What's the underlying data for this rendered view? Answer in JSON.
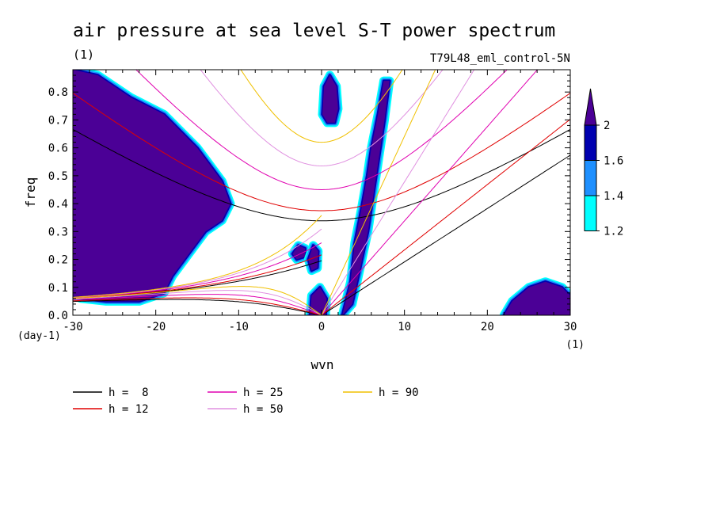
{
  "chart_data": {
    "type": "heatmap",
    "title": "air pressure at sea level S-T power spectrum",
    "units_label": "(1)",
    "experiment": "T79L48_eml_control-5N",
    "xlabel": "wvn",
    "ylabel": "freq",
    "x_unit_label": "(1)",
    "y_unit_label": "(day-1)",
    "xlim": [
      -30,
      30
    ],
    "ylim": [
      0,
      0.88
    ],
    "x_ticks": [
      -30,
      -20,
      -10,
      0,
      10,
      20,
      30
    ],
    "x_tick_labels": [
      "-30",
      "-20",
      "-10",
      "0",
      "10",
      "20",
      "30"
    ],
    "y_ticks": [
      0,
      0.1,
      0.2,
      0.3,
      0.4,
      0.5,
      0.6,
      0.7,
      0.8
    ],
    "y_tick_labels": [
      "0.0",
      "0.1",
      "0.2",
      "0.3",
      "0.4",
      "0.5",
      "0.6",
      "0.7",
      "0.8"
    ],
    "colorbar": {
      "levels": [
        1.2,
        1.4,
        1.6,
        2
      ],
      "level_labels": [
        "1.2",
        "1.4",
        "1.6",
        "2"
      ],
      "colors": [
        "#00ffff",
        "#1e90ff",
        "#0000b0",
        "#4b0096"
      ]
    },
    "shading": {
      "colors": [
        "#00ffff",
        "#1e90ff",
        "#0000b0",
        "#4b0096"
      ],
      "regions": [
        {
          "name": "westward-low-wavenumber-peak",
          "polygon": [
            [
              -30,
              0.88
            ],
            [
              -27,
              0.86
            ],
            [
              -23,
              0.78
            ],
            [
              -19,
              0.72
            ],
            [
              -15,
              0.6
            ],
            [
              -12,
              0.48
            ],
            [
              -11,
              0.4
            ],
            [
              -12,
              0.34
            ],
            [
              -14,
              0.3
            ],
            [
              -16,
              0.22
            ],
            [
              -18,
              0.14
            ],
            [
              -19,
              0.08
            ],
            [
              -22,
              0.05
            ],
            [
              -26,
              0.05
            ],
            [
              -29,
              0.06
            ],
            [
              -30,
              0.07
            ]
          ]
        },
        {
          "name": "eastward-ridge",
          "polygon": [
            [
              2.5,
              0.0
            ],
            [
              3.5,
              0.12
            ],
            [
              4,
              0.26
            ],
            [
              4.8,
              0.38
            ],
            [
              5.5,
              0.5
            ],
            [
              6,
              0.6
            ],
            [
              6.8,
              0.72
            ],
            [
              7.5,
              0.84
            ],
            [
              8.2,
              0.84
            ],
            [
              7.6,
              0.7
            ],
            [
              6.9,
              0.56
            ],
            [
              6.3,
              0.44
            ],
            [
              5.6,
              0.3
            ],
            [
              4.6,
              0.16
            ],
            [
              3.7,
              0.04
            ]
          ]
        },
        {
          "name": "isolated-high-freq-blob",
          "polygon": [
            [
              0.1,
              0.72
            ],
            [
              0.3,
              0.82
            ],
            [
              1,
              0.86
            ],
            [
              1.8,
              0.82
            ],
            [
              2,
              0.74
            ],
            [
              1.6,
              0.69
            ],
            [
              0.7,
              0.69
            ]
          ]
        },
        {
          "name": "mid-blob-a",
          "polygon": [
            [
              -3.5,
              0.22
            ],
            [
              -2.8,
              0.25
            ],
            [
              -2,
              0.24
            ],
            [
              -2,
              0.21
            ],
            [
              -3,
              0.2
            ]
          ]
        },
        {
          "name": "mid-blob-b",
          "polygon": [
            [
              -1.6,
              0.2
            ],
            [
              -1,
              0.25
            ],
            [
              -0.4,
              0.23
            ],
            [
              -0.5,
              0.17
            ],
            [
              -1.2,
              0.16
            ]
          ]
        },
        {
          "name": "low-origin-blob",
          "polygon": [
            [
              -1.4,
              0.0
            ],
            [
              -1.2,
              0.07
            ],
            [
              -0.2,
              0.1
            ],
            [
              0.6,
              0.06
            ],
            [
              0.5,
              0.0
            ]
          ]
        },
        {
          "name": "eastward-high-wavenumber-lowfreq",
          "polygon": [
            [
              22,
              0.0
            ],
            [
              23,
              0.05
            ],
            [
              25,
              0.1
            ],
            [
              27,
              0.12
            ],
            [
              29,
              0.1
            ],
            [
              30,
              0.07
            ],
            [
              30,
              0.0
            ]
          ]
        }
      ]
    },
    "series": [
      {
        "name": "h =  8",
        "color": "#000000",
        "depth_m": 8
      },
      {
        "name": "h = 12",
        "color": "#e00000",
        "depth_m": 12
      },
      {
        "name": "h = 25",
        "color": "#e000b0",
        "depth_m": 25
      },
      {
        "name": "h = 50",
        "color": "#e090e0",
        "depth_m": 50
      },
      {
        "name": "h = 90",
        "color": "#f0c000",
        "depth_m": 90
      }
    ],
    "legend_placement": "bottom",
    "grid": false
  }
}
